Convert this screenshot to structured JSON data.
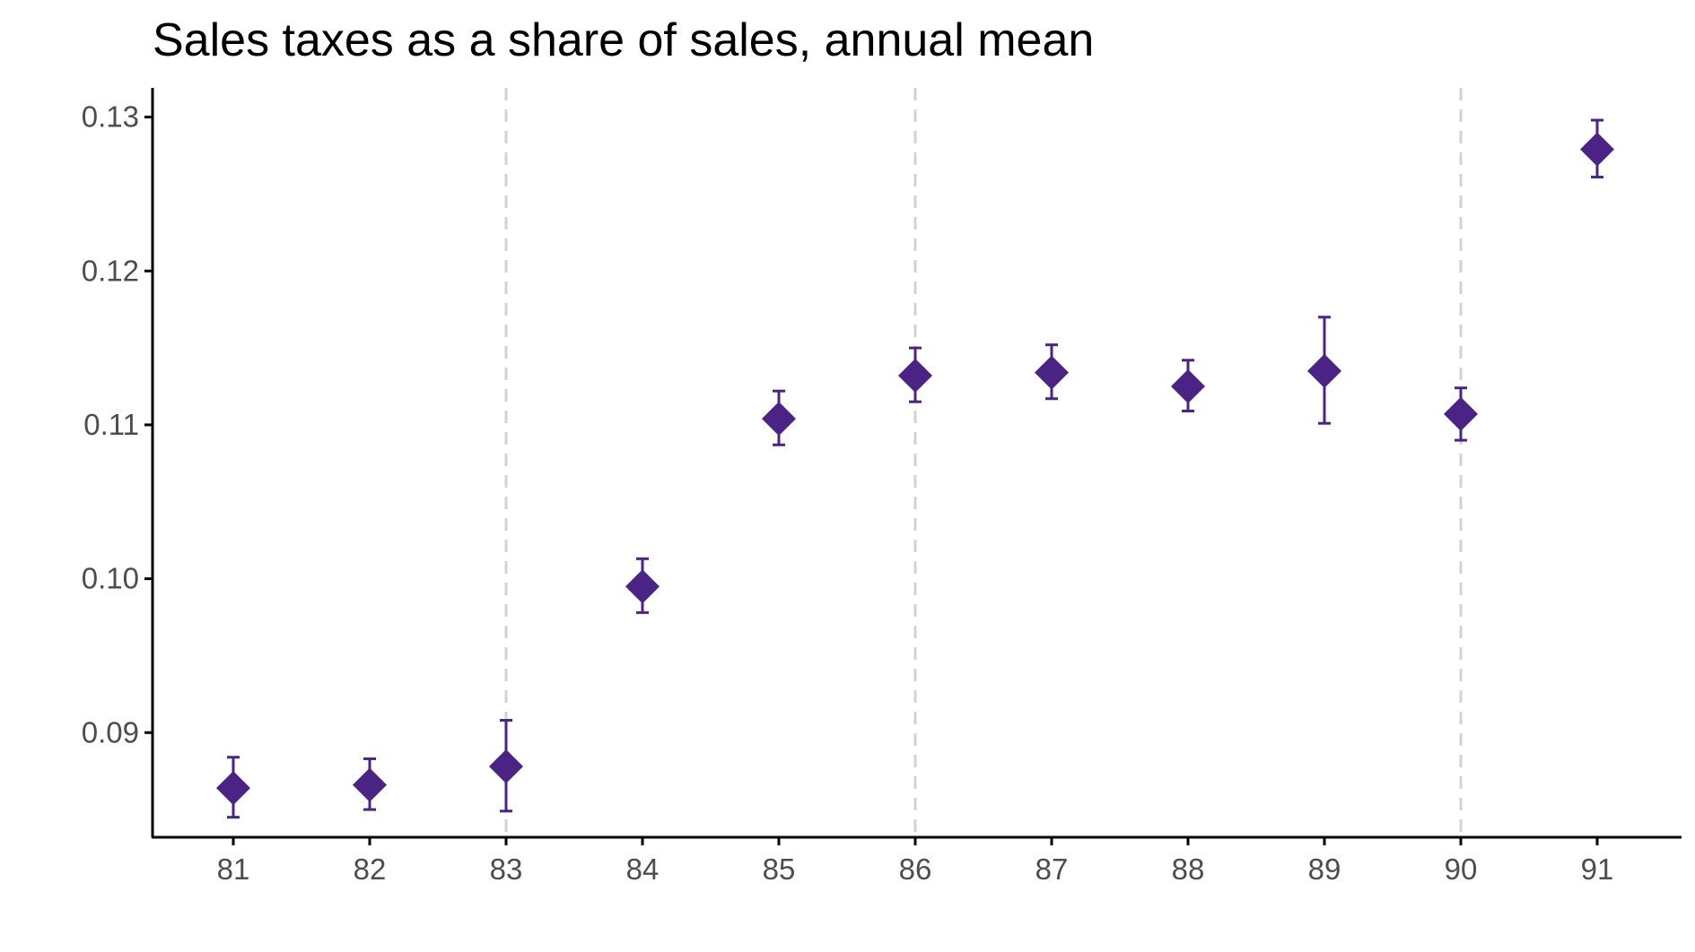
{
  "chart_data": {
    "type": "scatter",
    "title": "Sales taxes as a share of sales, annual mean",
    "xlabel": "",
    "ylabel": "",
    "x": [
      "81",
      "82",
      "83",
      "84",
      "85",
      "86",
      "87",
      "88",
      "89",
      "90",
      "91"
    ],
    "series": [
      {
        "values": [
          0.0864,
          0.0866,
          0.0878,
          0.0995,
          0.1104,
          0.1132,
          0.1134,
          0.1125,
          0.1135,
          0.1107,
          0.1279
        ],
        "lower": [
          0.0845,
          0.085,
          0.0849,
          0.0978,
          0.1087,
          0.1115,
          0.1117,
          0.1109,
          0.1101,
          0.109,
          0.1261
        ],
        "upper": [
          0.0884,
          0.0883,
          0.0908,
          0.1013,
          0.1122,
          0.115,
          0.1152,
          0.1142,
          0.117,
          0.1124,
          0.1298
        ],
        "color": "#4b2384",
        "marker": "diamond",
        "error_bars": true
      }
    ],
    "y_ticks": [
      "0.09",
      "0.10",
      "0.11",
      "0.12",
      "0.13"
    ],
    "y_tick_values": [
      0.09,
      0.1,
      0.11,
      0.12,
      0.13
    ],
    "ylim": [
      0.0832,
      0.1319
    ],
    "vertical_reference_lines": [
      "83",
      "86",
      "90"
    ],
    "reference_line_style": "dashed",
    "reference_line_color": "#d3d3d3",
    "axis_color": "#000000",
    "grid": false,
    "legend": "none"
  }
}
